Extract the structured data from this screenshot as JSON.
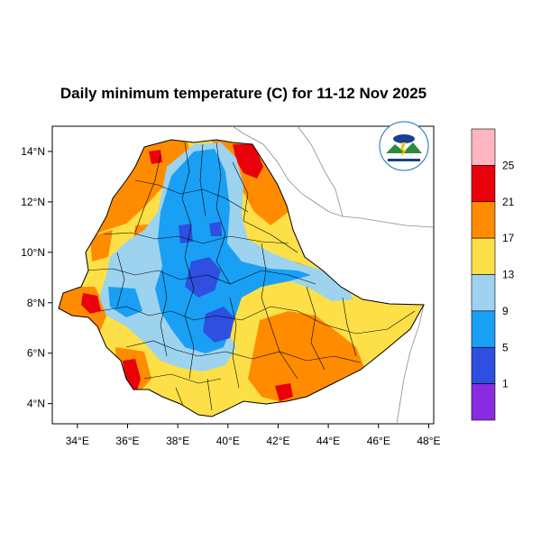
{
  "title": "Daily minimum temperature (C) for 11-12 Nov 2025",
  "axes": {
    "x_ticks": [
      "34°E",
      "36°E",
      "38°E",
      "40°E",
      "42°E",
      "44°E",
      "46°E",
      "48°E"
    ],
    "y_ticks": [
      "4°N",
      "6°N",
      "8°N",
      "10°N",
      "12°N",
      "14°N"
    ],
    "xlim": [
      33,
      48.2
    ],
    "ylim": [
      3.2,
      15
    ]
  },
  "colorbar": {
    "labels": [
      "1",
      "5",
      "9",
      "13",
      "17",
      "21",
      "25"
    ],
    "colors": [
      "#8a2be2",
      "#2e4fe0",
      "#19a0f5",
      "#9dd3ee",
      "#fde047",
      "#ff8c00",
      "#e8000b",
      "#ffb6c1"
    ]
  },
  "colors": {
    "background": "#ffffff",
    "border": "#000000",
    "coastline": "#999999"
  }
}
